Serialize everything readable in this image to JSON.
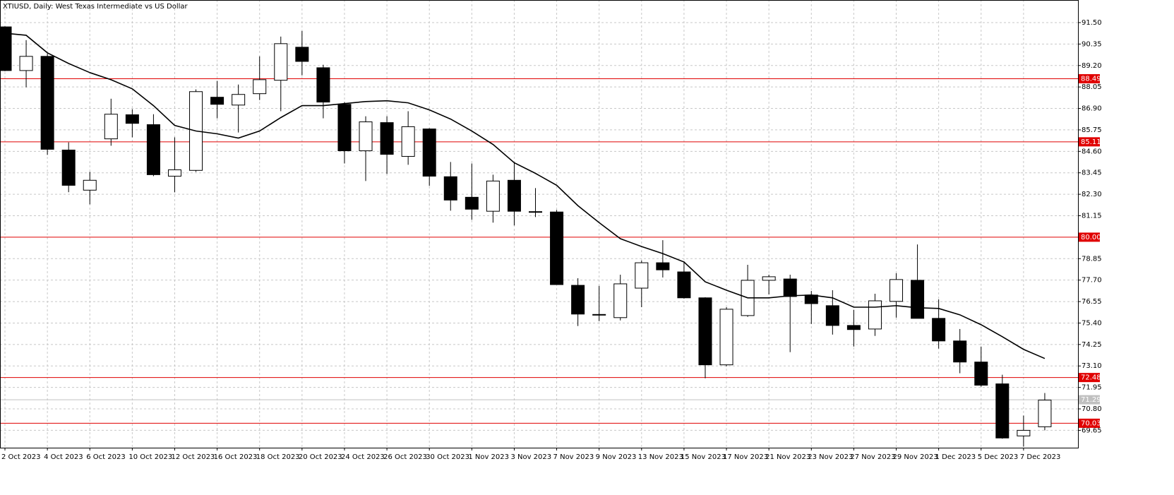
{
  "chart_data": {
    "type": "candlestick",
    "title": "XTIUSD, Daily:  West Texas Intermediate vs US Dollar",
    "categories": [
      "2 Oct 2023",
      null,
      "4 Oct 2023",
      null,
      "6 Oct 2023",
      null,
      "10 Oct 2023",
      null,
      "12 Oct 2023",
      null,
      "16 Oct 2023",
      null,
      "18 Oct 2023",
      null,
      "20 Oct 2023",
      null,
      "24 Oct 2023",
      null,
      "26 Oct 2023",
      null,
      "30 Oct 2023",
      null,
      "1 Nov 2023",
      null,
      "3 Nov 2023",
      null,
      "7 Nov 2023",
      null,
      "9 Nov 2023",
      null,
      "13 Nov 2023",
      null,
      "15 Nov 2023",
      null,
      "17 Nov 2023",
      null,
      "21 Nov 2023",
      null,
      "23 Nov 2023",
      null,
      "27 Nov 2023",
      null,
      "29 Nov 2023",
      null,
      "1 Dec 2023",
      null,
      "5 Dec 2023",
      null,
      "7 Dec 2023",
      null
    ],
    "open": [
      91.27,
      88.93,
      89.69,
      84.67,
      82.52,
      85.27,
      86.56,
      86.03,
      83.27,
      83.58,
      87.5,
      87.08,
      87.69,
      88.41,
      90.18,
      89.08,
      87.12,
      84.63,
      86.14,
      84.33,
      85.8,
      83.24,
      82.14,
      81.39,
      83.05,
      81.37,
      81.35,
      77.42,
      75.86,
      75.69,
      77.27,
      78.63,
      78.14,
      76.75,
      73.16,
      75.8,
      77.69,
      77.76,
      76.9,
      76.33,
      75.27,
      75.08,
      76.56,
      77.69,
      75.65,
      74.44,
      73.31,
      72.14,
      69.35,
      69.84
    ],
    "high": [
      91.3,
      90.56,
      89.84,
      85.08,
      83.5,
      87.42,
      86.86,
      86.59,
      85.35,
      87.92,
      88.37,
      88.18,
      89.69,
      90.75,
      91.05,
      89.24,
      87.24,
      86.48,
      86.48,
      86.75,
      85.84,
      84.03,
      83.95,
      83.35,
      84.03,
      82.63,
      81.46,
      77.8,
      77.39,
      77.99,
      78.75,
      79.84,
      78.71,
      76.78,
      76.25,
      78.52,
      77.99,
      77.99,
      77.12,
      77.16,
      76.1,
      76.97,
      78.07,
      79.61,
      76.67,
      75.08,
      74.14,
      72.63,
      70.44,
      71.65
    ],
    "low": [
      88.9,
      88.03,
      84.41,
      82.41,
      81.76,
      84.9,
      85.35,
      83.27,
      82.41,
      83.5,
      86.37,
      85.61,
      87.35,
      86.75,
      88.67,
      86.37,
      83.95,
      83.01,
      83.39,
      83.88,
      82.75,
      81.42,
      80.93,
      80.78,
      80.63,
      81.08,
      77.46,
      75.24,
      75.5,
      75.54,
      76.25,
      77.84,
      76.71,
      72.44,
      73.08,
      75.73,
      76.93,
      73.84,
      75.35,
      74.78,
      74.14,
      74.71,
      75.69,
      75.65,
      74.03,
      72.71,
      71.99,
      69.2,
      68.78,
      69.65
    ],
    "close": [
      88.93,
      89.69,
      84.71,
      82.78,
      83.05,
      86.59,
      86.1,
      83.35,
      83.61,
      87.8,
      87.12,
      87.65,
      88.44,
      90.37,
      89.42,
      87.24,
      84.63,
      86.18,
      84.44,
      85.92,
      83.27,
      81.99,
      81.5,
      83.01,
      81.39,
      81.35,
      77.46,
      75.88,
      75.84,
      77.5,
      78.63,
      78.25,
      76.75,
      73.16,
      76.14,
      77.69,
      77.88,
      76.82,
      76.44,
      75.27,
      75.05,
      76.59,
      77.73,
      75.65,
      74.44,
      73.31,
      72.07,
      69.24,
      69.65,
      71.27
    ],
    "up_color": "#ffffff",
    "down_color": "#000000",
    "outline_color": "#000000",
    "lines": [
      {
        "color": "#000000",
        "values": [
          90.93,
          90.82,
          89.88,
          89.31,
          88.82,
          88.44,
          87.95,
          87.05,
          85.99,
          85.69,
          85.54,
          85.31,
          85.69,
          86.41,
          87.05,
          87.05,
          87.16,
          87.27,
          87.31,
          87.2,
          86.82,
          86.33,
          85.69,
          84.97,
          83.99,
          83.42,
          82.78,
          81.69,
          80.78,
          79.92,
          79.5,
          79.12,
          78.67,
          77.61,
          77.16,
          76.75,
          76.75,
          76.86,
          76.9,
          76.75,
          76.25,
          76.25,
          76.33,
          76.22,
          76.18,
          75.84,
          75.31,
          74.67,
          73.99,
          73.5
        ]
      }
    ],
    "hlines": [
      {
        "value": 88.49,
        "color": "#e00000"
      },
      {
        "value": 85.11,
        "color": "#e00000"
      },
      {
        "value": 80,
        "label": "80.00",
        "color": "#e00000"
      },
      {
        "value": 72.48,
        "color": "#e00000"
      },
      {
        "value": 71.29,
        "color": "#c0c0c0"
      },
      {
        "value": 70.03,
        "color": "#e00000"
      }
    ],
    "ylim": [
      68.72,
      92.71
    ],
    "yticks": [
      {
        "value": 91.5,
        "label": "91.50"
      },
      90.35,
      {
        "value": 89.2,
        "label": "89.20"
      },
      88.05,
      {
        "value": 86.9,
        "label": "86.90"
      },
      85.75,
      {
        "value": 84.6,
        "label": "84.60"
      },
      83.45,
      {
        "value": 82.3,
        "label": "82.30"
      },
      81.15,
      78.85,
      {
        "value": 77.7,
        "label": "77.70"
      },
      76.55,
      {
        "value": 75.4,
        "label": "75.40"
      },
      74.25,
      {
        "value": 73.1,
        "label": "73.10"
      },
      71.95,
      {
        "value": 70.8,
        "label": "70.80"
      },
      69.65
    ],
    "grid": true
  }
}
